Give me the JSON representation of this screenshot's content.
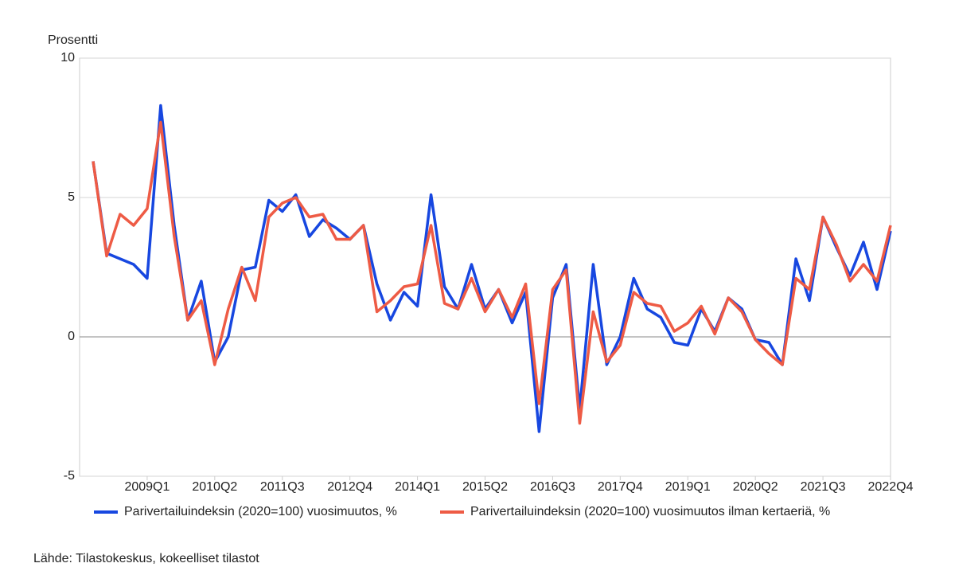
{
  "chart_data": {
    "type": "line",
    "y_label": "Prosentti",
    "source": "Lähde: Tilastokeskus, kokeelliset tilastot",
    "categories": [
      null,
      null,
      null,
      null,
      "2009Q1",
      null,
      null,
      null,
      null,
      "2010Q2",
      null,
      null,
      null,
      null,
      "2011Q3",
      null,
      null,
      null,
      null,
      "2012Q4",
      null,
      null,
      null,
      null,
      "2014Q1",
      null,
      null,
      null,
      null,
      "2015Q2",
      null,
      null,
      null,
      null,
      "2016Q3",
      null,
      null,
      null,
      null,
      "2017Q4",
      null,
      null,
      null,
      null,
      "2019Q1",
      null,
      null,
      null,
      null,
      "2020Q2",
      null,
      null,
      null,
      null,
      "2021Q3",
      null,
      null,
      null,
      null,
      "2022Q4"
    ],
    "series": [
      {
        "name": "Parivertailuindeksin (2020=100) vuosimuutos, %",
        "color": "#1747e0",
        "values": [
          6.3,
          3.0,
          2.8,
          2.6,
          2.1,
          8.3,
          4.0,
          0.6,
          2.0,
          -0.9,
          0.0,
          2.4,
          2.5,
          4.9,
          4.5,
          5.1,
          3.6,
          4.2,
          3.9,
          3.5,
          4.0,
          1.9,
          0.6,
          1.6,
          1.1,
          5.1,
          1.8,
          1.0,
          2.6,
          1.0,
          1.7,
          0.5,
          1.6,
          -3.4,
          1.4,
          2.6,
          -2.6,
          2.6,
          -1.0,
          0.0,
          2.1,
          1.0,
          0.7,
          -0.2,
          -0.3,
          1.0,
          0.2,
          1.4,
          1.0,
          -0.1,
          -0.2,
          -1.0,
          2.8,
          1.3,
          4.3,
          3.2,
          2.2,
          3.4,
          1.7,
          3.8
        ]
      },
      {
        "name": "Parivertailuindeksin (2020=100) vuosimuutos ilman kertaeriä, %",
        "color": "#ee5b45",
        "values": [
          6.3,
          2.9,
          4.4,
          4.0,
          4.6,
          7.7,
          3.6,
          0.6,
          1.3,
          -1.0,
          1.0,
          2.5,
          1.3,
          4.3,
          4.8,
          5.0,
          4.3,
          4.4,
          3.5,
          3.5,
          4.0,
          0.9,
          1.3,
          1.8,
          1.9,
          4.0,
          1.2,
          1.0,
          2.1,
          0.9,
          1.7,
          0.7,
          1.9,
          -2.4,
          1.7,
          2.4,
          -3.1,
          0.9,
          -0.9,
          -0.3,
          1.6,
          1.2,
          1.1,
          0.2,
          0.5,
          1.1,
          0.1,
          1.4,
          0.9,
          -0.1,
          -0.6,
          -1.0,
          2.1,
          1.7,
          4.3,
          3.3,
          2.0,
          2.6,
          2.0,
          4.0
        ]
      }
    ],
    "ylim": [
      -5,
      10
    ],
    "yticks": [
      -5,
      0,
      5,
      10
    ],
    "grid": true,
    "legend": "bottom"
  }
}
